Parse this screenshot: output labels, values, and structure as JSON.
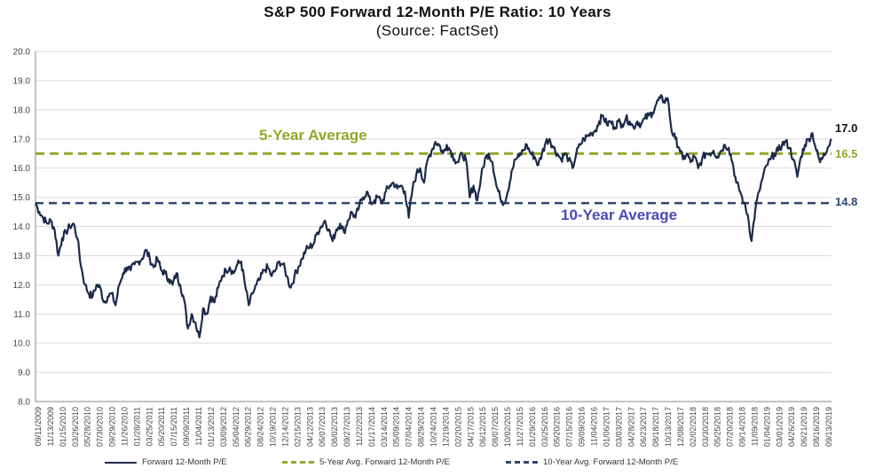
{
  "chart_data": {
    "type": "line",
    "title": "S&P 500 Forward 12-Month P/E Ratio: 10 Years",
    "subtitle": "(Source: FactSet)",
    "ylim": [
      8.0,
      20.0
    ],
    "yticks": [
      "8.0",
      "9.0",
      "10.0",
      "11.0",
      "12.0",
      "13.0",
      "14.0",
      "15.0",
      "16.0",
      "17.0",
      "18.0",
      "19.0",
      "20.0"
    ],
    "xticks": [
      "09/11/2009",
      "11/13/2009",
      "01/15/2010",
      "03/26/2010",
      "05/28/2010",
      "07/30/2010",
      "09/29/2010",
      "11/26/2010",
      "01/28/2011",
      "03/25/2011",
      "05/20/2011",
      "07/15/2011",
      "09/09/2011",
      "11/04/2011",
      "01/13/2012",
      "03/09/2012",
      "05/04/2012",
      "06/29/2012",
      "08/24/2012",
      "10/19/2012",
      "12/14/2012",
      "02/15/2013",
      "04/12/2013",
      "06/07/2013",
      "08/02/2013",
      "09/27/2013",
      "11/22/2013",
      "01/17/2014",
      "03/14/2014",
      "05/09/2014",
      "07/04/2014",
      "08/29/2014",
      "10/24/2014",
      "12/19/2014",
      "02/20/2015",
      "04/17/2015",
      "06/12/2015",
      "08/07/2015",
      "10/02/2015",
      "11/27/2015",
      "01/29/2016",
      "03/25/2016",
      "05/20/2016",
      "07/15/2016",
      "09/09/2016",
      "11/04/2016",
      "01/06/2017",
      "03/03/2017",
      "04/28/2017",
      "06/23/2017",
      "08/18/2017",
      "10/13/2017",
      "12/08/2017",
      "02/02/2018",
      "03/30/2018",
      "05/25/2018",
      "07/20/2018",
      "09/14/2018",
      "11/09/2018",
      "01/04/2019",
      "03/01/2019",
      "04/26/2019",
      "06/21/2019",
      "08/16/2019",
      "09/13/2019"
    ],
    "series": [
      {
        "name": "Forward 12-Month P/E",
        "color": "#1c2a4a",
        "points": [
          [
            0,
            14.8
          ],
          [
            1,
            14.5
          ],
          [
            2,
            14.3
          ],
          [
            3,
            14.1
          ],
          [
            4,
            14.2
          ],
          [
            5,
            13.9
          ],
          [
            6,
            13.0
          ],
          [
            7,
            13.6
          ],
          [
            8,
            13.8
          ],
          [
            9,
            14.0
          ],
          [
            10,
            14.1
          ],
          [
            11,
            13.6
          ],
          [
            12,
            12.6
          ],
          [
            13,
            12.0
          ],
          [
            14,
            11.7
          ],
          [
            15,
            11.6
          ],
          [
            16,
            12.0
          ],
          [
            17,
            11.9
          ],
          [
            18,
            11.4
          ],
          [
            19,
            11.6
          ],
          [
            20,
            11.7
          ],
          [
            21,
            11.3
          ],
          [
            22,
            12.0
          ],
          [
            23,
            12.4
          ],
          [
            24,
            12.6
          ],
          [
            25,
            12.5
          ],
          [
            26,
            12.7
          ],
          [
            27,
            12.8
          ],
          [
            28,
            12.9
          ],
          [
            29,
            13.2
          ],
          [
            30,
            12.9
          ],
          [
            31,
            12.6
          ],
          [
            32,
            12.9
          ],
          [
            33,
            12.5
          ],
          [
            34,
            12.4
          ],
          [
            35,
            12.2
          ],
          [
            36,
            12.0
          ],
          [
            37,
            12.4
          ],
          [
            38,
            12.0
          ],
          [
            39,
            11.5
          ],
          [
            40,
            10.5
          ],
          [
            41,
            11.0
          ],
          [
            42,
            10.7
          ],
          [
            43,
            10.2
          ],
          [
            44,
            11.2
          ],
          [
            45,
            11.0
          ],
          [
            46,
            11.6
          ],
          [
            47,
            11.4
          ],
          [
            48,
            11.9
          ],
          [
            49,
            12.3
          ],
          [
            50,
            12.5
          ],
          [
            51,
            12.6
          ],
          [
            52,
            12.4
          ],
          [
            53,
            12.7
          ],
          [
            54,
            12.8
          ],
          [
            55,
            12.0
          ],
          [
            56,
            11.3
          ],
          [
            57,
            11.7
          ],
          [
            58,
            12.0
          ],
          [
            59,
            12.2
          ],
          [
            60,
            12.5
          ],
          [
            61,
            12.6
          ],
          [
            62,
            12.3
          ],
          [
            63,
            12.5
          ],
          [
            64,
            12.8
          ],
          [
            65,
            12.7
          ],
          [
            66,
            12.3
          ],
          [
            67,
            11.9
          ],
          [
            68,
            12.3
          ],
          [
            69,
            12.6
          ],
          [
            70,
            12.9
          ],
          [
            71,
            13.2
          ],
          [
            72,
            13.3
          ],
          [
            73,
            13.4
          ],
          [
            74,
            13.8
          ],
          [
            75,
            14.0
          ],
          [
            76,
            14.2
          ],
          [
            77,
            13.9
          ],
          [
            78,
            13.5
          ],
          [
            79,
            13.9
          ],
          [
            80,
            14.1
          ],
          [
            81,
            13.8
          ],
          [
            82,
            14.2
          ],
          [
            83,
            14.5
          ],
          [
            84,
            14.3
          ],
          [
            85,
            14.7
          ],
          [
            86,
            15.0
          ],
          [
            87,
            15.2
          ],
          [
            88,
            14.8
          ],
          [
            89,
            14.9
          ],
          [
            90,
            15.0
          ],
          [
            91,
            14.8
          ],
          [
            92,
            15.2
          ],
          [
            93,
            15.4
          ],
          [
            94,
            15.5
          ],
          [
            95,
            15.3
          ],
          [
            96,
            15.4
          ],
          [
            97,
            15.2
          ],
          [
            98,
            14.3
          ],
          [
            99,
            15.3
          ],
          [
            100,
            15.8
          ],
          [
            101,
            16.0
          ],
          [
            102,
            15.5
          ],
          [
            103,
            16.3
          ],
          [
            104,
            16.6
          ],
          [
            105,
            16.9
          ],
          [
            106,
            16.8
          ],
          [
            107,
            16.5
          ],
          [
            108,
            16.8
          ],
          [
            109,
            16.6
          ],
          [
            110,
            16.3
          ],
          [
            111,
            16.2
          ],
          [
            112,
            16.5
          ],
          [
            113,
            16.3
          ],
          [
            114,
            15.0
          ],
          [
            115,
            15.4
          ],
          [
            116,
            14.9
          ],
          [
            117,
            15.7
          ],
          [
            118,
            16.3
          ],
          [
            119,
            16.5
          ],
          [
            120,
            16.2
          ],
          [
            121,
            15.4
          ],
          [
            122,
            15.0
          ],
          [
            123,
            14.8
          ],
          [
            124,
            15.2
          ],
          [
            125,
            15.9
          ],
          [
            126,
            16.3
          ],
          [
            127,
            16.4
          ],
          [
            128,
            16.6
          ],
          [
            129,
            16.8
          ],
          [
            130,
            16.5
          ],
          [
            131,
            16.4
          ],
          [
            132,
            16.1
          ],
          [
            133,
            16.5
          ],
          [
            134,
            16.9
          ],
          [
            135,
            17.0
          ],
          [
            136,
            16.7
          ],
          [
            137,
            16.5
          ],
          [
            138,
            16.3
          ],
          [
            139,
            16.5
          ],
          [
            140,
            16.3
          ],
          [
            141,
            16.0
          ],
          [
            142,
            16.5
          ],
          [
            143,
            16.8
          ],
          [
            144,
            17.0
          ],
          [
            145,
            17.1
          ],
          [
            146,
            17.2
          ],
          [
            147,
            17.3
          ],
          [
            148,
            17.6
          ],
          [
            149,
            17.8
          ],
          [
            150,
            17.5
          ],
          [
            151,
            17.6
          ],
          [
            152,
            17.4
          ],
          [
            153,
            17.6
          ],
          [
            154,
            17.5
          ],
          [
            155,
            17.7
          ],
          [
            156,
            17.6
          ],
          [
            157,
            17.4
          ],
          [
            158,
            17.6
          ],
          [
            159,
            17.5
          ],
          [
            160,
            17.7
          ],
          [
            161,
            17.8
          ],
          [
            162,
            17.9
          ],
          [
            163,
            18.2
          ],
          [
            164,
            18.4
          ],
          [
            165,
            18.3
          ],
          [
            166,
            18.4
          ],
          [
            167,
            17.3
          ],
          [
            168,
            17.0
          ],
          [
            169,
            16.7
          ],
          [
            170,
            16.3
          ],
          [
            171,
            16.5
          ],
          [
            172,
            16.2
          ],
          [
            173,
            16.4
          ],
          [
            174,
            16.0
          ],
          [
            175,
            16.3
          ],
          [
            176,
            16.5
          ],
          [
            177,
            16.5
          ],
          [
            178,
            16.6
          ],
          [
            179,
            16.4
          ],
          [
            180,
            16.6
          ],
          [
            181,
            16.8
          ],
          [
            182,
            16.7
          ],
          [
            183,
            16.2
          ],
          [
            184,
            15.5
          ],
          [
            185,
            15.2
          ],
          [
            186,
            14.8
          ],
          [
            187,
            14.4
          ],
          [
            188,
            13.5
          ],
          [
            189,
            14.6
          ],
          [
            190,
            15.2
          ],
          [
            191,
            15.7
          ],
          [
            192,
            16.1
          ],
          [
            193,
            16.3
          ],
          [
            194,
            16.5
          ],
          [
            195,
            16.6
          ],
          [
            196,
            16.8
          ],
          [
            197,
            16.9
          ],
          [
            198,
            16.7
          ],
          [
            199,
            16.3
          ],
          [
            200,
            15.7
          ],
          [
            201,
            16.4
          ],
          [
            202,
            16.8
          ],
          [
            203,
            17.0
          ],
          [
            204,
            17.2
          ],
          [
            205,
            16.6
          ],
          [
            206,
            16.2
          ],
          [
            207,
            16.5
          ],
          [
            208,
            16.7
          ],
          [
            209,
            17.0
          ]
        ]
      },
      {
        "name": "5-Year Avg. Forward 12-Month P/E",
        "color": "#93a82a",
        "value": 16.5
      },
      {
        "name": "10-Year Avg. Forward 12-Month P/E",
        "color": "#2e4670",
        "value": 14.8
      }
    ],
    "annotations": [
      {
        "text": "5-Year Average",
        "color": "#93a82a"
      },
      {
        "text": "10-Year Average",
        "color": "#4a4ab8"
      }
    ],
    "end_labels": [
      {
        "text": "17.0",
        "color": "#111111",
        "value": 17.0
      },
      {
        "text": "16.5",
        "color": "#93a82a",
        "value": 16.5
      },
      {
        "text": "14.8",
        "color": "#2e4670",
        "value": 14.8
      }
    ]
  }
}
